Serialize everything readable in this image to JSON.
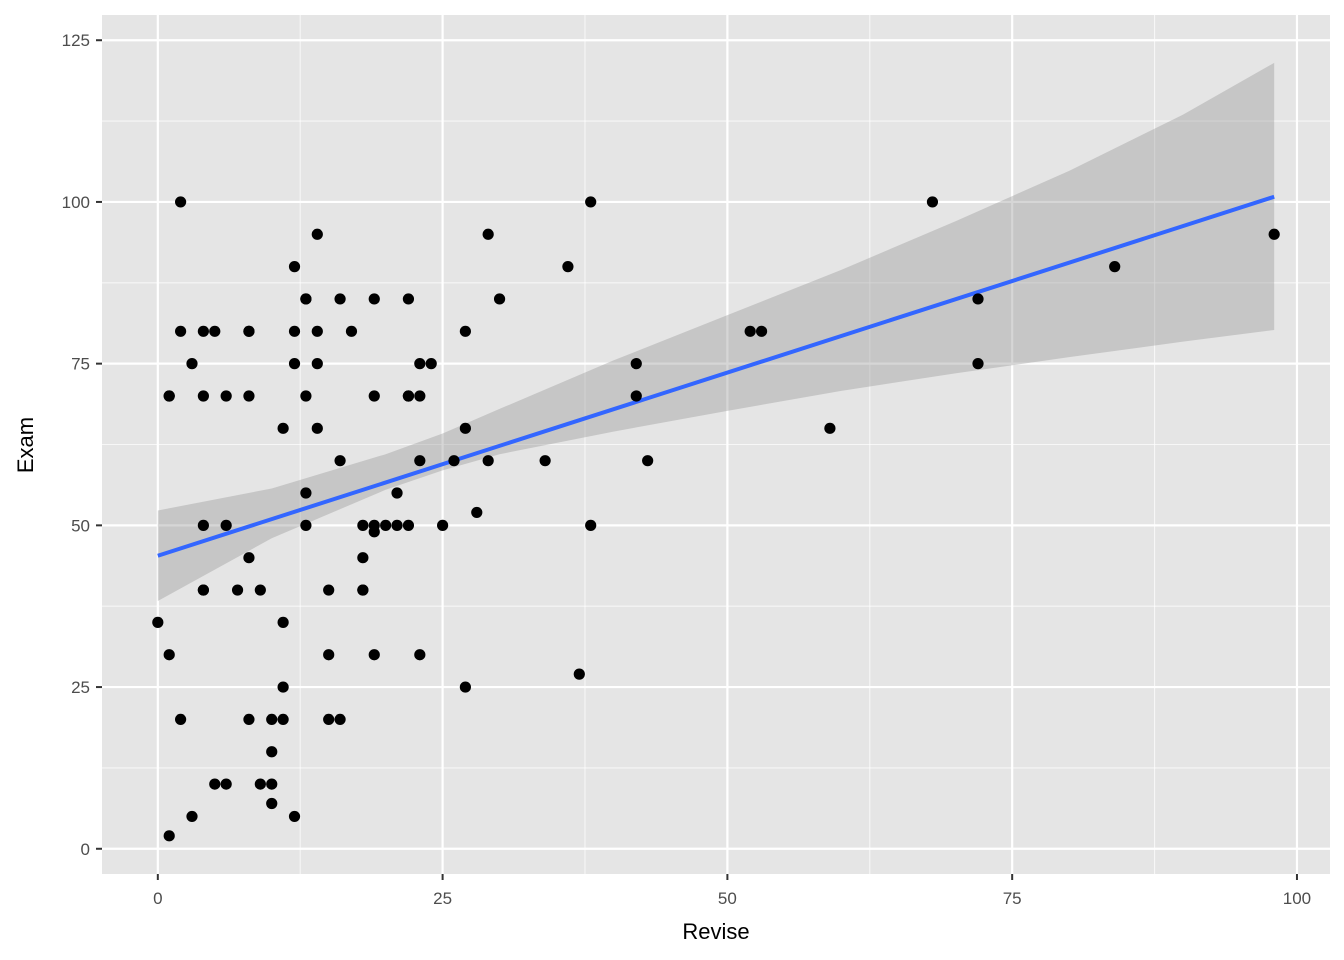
{
  "chart_data": {
    "type": "scatter",
    "title": "",
    "xlabel": "Revise",
    "ylabel": "Exam",
    "xlim": [
      -4.9,
      102.9
    ],
    "ylim": [
      -3.9,
      128.9
    ],
    "x_ticks": [
      0,
      25,
      50,
      75,
      100
    ],
    "y_ticks": [
      0,
      25,
      50,
      75,
      100,
      125
    ],
    "x_tick_labels": [
      "0",
      "25",
      "50",
      "75",
      "100"
    ],
    "y_tick_labels": [
      "0",
      "25",
      "50",
      "75",
      "100",
      "125"
    ],
    "grid": true,
    "legend": "none",
    "colors": {
      "panel_background": "#e5e5e5",
      "grid": "#ffffff",
      "points": "#000000",
      "fit_line": "#3366ff",
      "confidence_band": "#999999"
    },
    "points": [
      [
        0,
        35
      ],
      [
        1,
        70
      ],
      [
        1,
        70
      ],
      [
        1,
        30
      ],
      [
        1,
        2
      ],
      [
        2,
        100
      ],
      [
        2,
        80
      ],
      [
        2,
        20
      ],
      [
        3,
        75
      ],
      [
        3,
        5
      ],
      [
        4,
        80
      ],
      [
        4,
        70
      ],
      [
        4,
        50
      ],
      [
        4,
        40
      ],
      [
        4,
        40
      ],
      [
        5,
        80
      ],
      [
        5,
        10
      ],
      [
        6,
        70
      ],
      [
        6,
        50
      ],
      [
        6,
        10
      ],
      [
        7,
        40
      ],
      [
        8,
        80
      ],
      [
        8,
        80
      ],
      [
        8,
        70
      ],
      [
        8,
        45
      ],
      [
        8,
        20
      ],
      [
        9,
        40
      ],
      [
        9,
        10
      ],
      [
        10,
        20
      ],
      [
        10,
        15
      ],
      [
        10,
        10
      ],
      [
        10,
        7
      ],
      [
        11,
        65
      ],
      [
        11,
        35
      ],
      [
        11,
        25
      ],
      [
        11,
        20
      ],
      [
        12,
        90
      ],
      [
        12,
        80
      ],
      [
        12,
        75
      ],
      [
        12,
        5
      ],
      [
        13,
        85
      ],
      [
        13,
        85
      ],
      [
        13,
        70
      ],
      [
        13,
        55
      ],
      [
        13,
        50
      ],
      [
        14,
        95
      ],
      [
        14,
        80
      ],
      [
        14,
        75
      ],
      [
        14,
        65
      ],
      [
        15,
        40
      ],
      [
        15,
        30
      ],
      [
        15,
        20
      ],
      [
        16,
        85
      ],
      [
        16,
        60
      ],
      [
        16,
        20
      ],
      [
        17,
        80
      ],
      [
        18,
        50
      ],
      [
        18,
        45
      ],
      [
        18,
        40
      ],
      [
        18,
        40
      ],
      [
        19,
        85
      ],
      [
        19,
        70
      ],
      [
        19,
        50
      ],
      [
        19,
        49
      ],
      [
        19,
        30
      ],
      [
        20,
        50
      ],
      [
        21,
        55
      ],
      [
        21,
        50
      ],
      [
        22,
        85
      ],
      [
        22,
        70
      ],
      [
        22,
        70
      ],
      [
        22,
        50
      ],
      [
        23,
        75
      ],
      [
        23,
        70
      ],
      [
        23,
        60
      ],
      [
        23,
        30
      ],
      [
        24,
        75
      ],
      [
        25,
        50
      ],
      [
        26,
        60
      ],
      [
        27,
        80
      ],
      [
        27,
        65
      ],
      [
        27,
        25
      ],
      [
        28,
        52
      ],
      [
        29,
        95
      ],
      [
        29,
        60
      ],
      [
        30,
        85
      ],
      [
        34,
        60
      ],
      [
        36,
        90
      ],
      [
        37,
        27
      ],
      [
        38,
        100
      ],
      [
        38,
        50
      ],
      [
        42,
        75
      ],
      [
        42,
        70
      ],
      [
        43,
        60
      ],
      [
        52,
        80
      ],
      [
        53,
        80
      ],
      [
        59,
        65
      ],
      [
        68,
        100
      ],
      [
        72,
        85
      ],
      [
        72,
        75
      ],
      [
        84,
        90
      ],
      [
        98,
        95
      ]
    ],
    "fit_line": {
      "x": [
        0,
        98
      ],
      "y": [
        45.3,
        100.8
      ]
    },
    "confidence_band": {
      "x": [
        0,
        10,
        20,
        25,
        30,
        40,
        50,
        60,
        70,
        80,
        90,
        98
      ],
      "lower": [
        38.3,
        48.0,
        55.5,
        58.5,
        61.0,
        64.5,
        67.7,
        70.8,
        73.5,
        76.0,
        78.4,
        80.2
      ],
      "upper": [
        52.3,
        55.7,
        61.0,
        64.2,
        68.0,
        75.5,
        82.5,
        89.5,
        97.0,
        104.8,
        113.5,
        121.5
      ]
    }
  }
}
